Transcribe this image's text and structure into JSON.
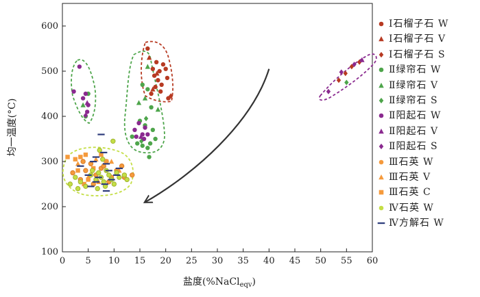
{
  "chart_data": {
    "type": "scatter",
    "xlabel": "盐度(%NaCl",
    "xlabel_sub": "eqv",
    "xlabel_close": ")",
    "ylabel": "均一温度(°C)",
    "xlim": [
      0,
      60
    ],
    "ylim": [
      100,
      650
    ],
    "xticks": [
      0,
      5,
      10,
      15,
      20,
      25,
      30,
      35,
      40,
      45,
      50,
      55,
      60
    ],
    "yticks": [
      100,
      200,
      300,
      400,
      500,
      600
    ],
    "grid": false,
    "legend_position": "right",
    "colors": {
      "garnet": "#b73a22",
      "epidote": "#4ea54b",
      "actinolite": "#8a2a8f",
      "quartz3": "#f59a3c",
      "quartz4": "#c4de45",
      "calcite": "#2b3a7a",
      "arrow": "#333333"
    },
    "series": [
      {
        "name": "Ⅰ石榴子石 W",
        "marker": "circle",
        "color": "#b73a22",
        "points": [
          [
            16.5,
            550
          ],
          [
            17.5,
            505
          ],
          [
            18.2,
            520
          ],
          [
            18.8,
            500
          ],
          [
            19.5,
            515
          ],
          [
            20.0,
            505
          ],
          [
            17.8,
            490
          ],
          [
            18.5,
            480
          ],
          [
            19.2,
            470
          ],
          [
            20.3,
            485
          ],
          [
            18.0,
            465
          ],
          [
            19.0,
            455
          ],
          [
            20.5,
            440
          ],
          [
            17.2,
            450
          ]
        ]
      },
      {
        "name": "Ⅰ石榴子石 V",
        "marker": "triangle",
        "color": "#b73a22",
        "points": [
          [
            16.8,
            530
          ],
          [
            18.3,
            495
          ],
          [
            17.5,
            460
          ]
        ]
      },
      {
        "name": "Ⅰ石榴子石 S",
        "marker": "diamond",
        "color": "#b73a22",
        "points": [
          [
            53.5,
            480
          ],
          [
            54.8,
            495
          ],
          [
            56.0,
            510
          ],
          [
            57.5,
            520
          ],
          [
            21.0,
            445
          ]
        ]
      },
      {
        "name": "Ⅱ绿帘石 W",
        "marker": "circle",
        "color": "#4ea54b",
        "points": [
          [
            4.5,
            400
          ],
          [
            5.0,
            450
          ],
          [
            15.5,
            470
          ],
          [
            16.5,
            460
          ],
          [
            17.2,
            420
          ],
          [
            15.0,
            390
          ],
          [
            16.0,
            380
          ],
          [
            17.5,
            370
          ],
          [
            13.5,
            355
          ],
          [
            14.5,
            340
          ],
          [
            15.5,
            335
          ],
          [
            16.5,
            330
          ],
          [
            18.0,
            350
          ],
          [
            17.0,
            340
          ],
          [
            16.8,
            310
          ]
        ]
      },
      {
        "name": "Ⅱ绿帘石 V",
        "marker": "triangle",
        "color": "#4ea54b",
        "points": [
          [
            4.0,
            425
          ],
          [
            14.8,
            430
          ],
          [
            16.0,
            440
          ],
          [
            16.5,
            510
          ],
          [
            18.5,
            415
          ]
        ]
      },
      {
        "name": "Ⅱ绿帘石 S",
        "marker": "diamond",
        "color": "#4ea54b",
        "points": [
          [
            55.0,
            475
          ],
          [
            16.2,
            395
          ],
          [
            15.3,
            345
          ]
        ]
      },
      {
        "name": "Ⅱ阳起石 W",
        "marker": "circle",
        "color": "#8a2a8f",
        "points": [
          [
            2.2,
            455
          ],
          [
            3.3,
            510
          ],
          [
            4.0,
            440
          ],
          [
            4.5,
            450
          ],
          [
            5.0,
            425
          ],
          [
            4.8,
            410
          ],
          [
            14.0,
            370
          ],
          [
            14.8,
            385
          ],
          [
            15.5,
            360
          ],
          [
            16.0,
            375
          ],
          [
            14.3,
            355
          ],
          [
            15.8,
            350
          ],
          [
            16.5,
            360
          ]
        ]
      },
      {
        "name": "Ⅱ阳起石 V",
        "marker": "triangle",
        "color": "#8a2a8f",
        "points": [
          [
            4.8,
            430
          ],
          [
            15.2,
            355
          ],
          [
            58.0,
            525
          ]
        ]
      },
      {
        "name": "Ⅱ阳起石 S",
        "marker": "diamond",
        "color": "#8a2a8f",
        "points": [
          [
            51.5,
            455
          ],
          [
            54.0,
            498
          ],
          [
            56.5,
            515
          ],
          [
            4.5,
            402
          ]
        ]
      },
      {
        "name": "Ⅲ石英 W",
        "marker": "circle",
        "color": "#f59a3c",
        "points": [
          [
            2.0,
            275
          ],
          [
            3.5,
            260
          ],
          [
            4.5,
            280
          ],
          [
            5.5,
            295
          ],
          [
            6.5,
            270
          ],
          [
            7.5,
            285
          ],
          [
            8.5,
            300
          ],
          [
            9.5,
            265
          ],
          [
            10.5,
            280
          ],
          [
            11.5,
            290
          ],
          [
            13.5,
            270
          ],
          [
            6.0,
            250
          ],
          [
            4.0,
            300
          ],
          [
            9.0,
            255
          ],
          [
            12.0,
            265
          ],
          [
            8.0,
            290
          ]
        ]
      },
      {
        "name": "Ⅲ石英 V",
        "marker": "triangle",
        "color": "#f59a3c",
        "points": [
          [
            3.0,
            295
          ],
          [
            5.0,
            265
          ],
          [
            7.0,
            255
          ],
          [
            9.5,
            300
          ],
          [
            11.0,
            280
          ],
          [
            6.5,
            305
          ]
        ]
      },
      {
        "name": "Ⅲ石英 C",
        "marker": "square",
        "color": "#f59a3c",
        "points": [
          [
            1.0,
            310
          ],
          [
            2.5,
            305
          ],
          [
            3.5,
            310
          ],
          [
            4.5,
            315
          ],
          [
            3.0,
            280
          ],
          [
            5.0,
            260
          ],
          [
            7.5,
            315
          ],
          [
            8.5,
            300
          ],
          [
            6.0,
            285
          ],
          [
            4.2,
            250
          ]
        ]
      },
      {
        "name": "Ⅳ石英 W",
        "marker": "circle",
        "color": "#c4de45",
        "points": [
          [
            1.5,
            250
          ],
          [
            2.5,
            265
          ],
          [
            3.5,
            255
          ],
          [
            4.5,
            245
          ],
          [
            5.5,
            270
          ],
          [
            6.5,
            260
          ],
          [
            7.0,
            275
          ],
          [
            7.5,
            265
          ],
          [
            8.0,
            255
          ],
          [
            8.5,
            280
          ],
          [
            9.0,
            270
          ],
          [
            9.5,
            260
          ],
          [
            10.0,
            250
          ],
          [
            10.5,
            275
          ],
          [
            11.0,
            265
          ],
          [
            12.0,
            270
          ],
          [
            7.2,
            325
          ],
          [
            7.8,
            305
          ],
          [
            9.8,
            345
          ],
          [
            6.8,
            240
          ],
          [
            8.3,
            245
          ],
          [
            5.8,
            280
          ],
          [
            12.5,
            260
          ],
          [
            3.0,
            240
          ]
        ]
      },
      {
        "name": "Ⅳ方解石 W",
        "marker": "dash",
        "color": "#2b3a7a",
        "points": [
          [
            3.5,
            290
          ],
          [
            5.0,
            270
          ],
          [
            6.0,
            300
          ],
          [
            6.5,
            310
          ],
          [
            7.5,
            360
          ],
          [
            8.0,
            320
          ],
          [
            8.5,
            295
          ],
          [
            9.0,
            280
          ],
          [
            7.0,
            265
          ],
          [
            8.5,
            235
          ],
          [
            9.5,
            260
          ],
          [
            10.5,
            270
          ],
          [
            6.5,
            255
          ],
          [
            5.5,
            245
          ],
          [
            11.0,
            285
          ],
          [
            8.2,
            250
          ]
        ]
      }
    ],
    "arrow": {
      "from": [
        40,
        505
      ],
      "to": [
        16,
        210
      ]
    }
  }
}
